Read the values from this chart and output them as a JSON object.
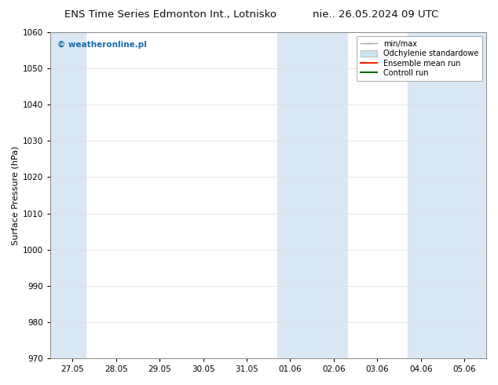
{
  "title_left": "ENS Time Series Edmonton Int., Lotnisko",
  "title_right": "nie.. 26.05.2024 09 UTC",
  "ylabel": "Surface Pressure (hPa)",
  "ylim": [
    970,
    1060
  ],
  "yticks": [
    970,
    980,
    990,
    1000,
    1010,
    1020,
    1030,
    1040,
    1050,
    1060
  ],
  "x_labels": [
    "27.05",
    "28.05",
    "29.05",
    "30.05",
    "31.05",
    "01.06",
    "02.06",
    "03.06",
    "04.06",
    "05.06"
  ],
  "x_values": [
    0,
    1,
    2,
    3,
    4,
    5,
    6,
    7,
    8,
    9
  ],
  "xlim": [
    -0.5,
    9.5
  ],
  "shaded_bands": [
    {
      "x_start": -0.5,
      "x_end": 0.3,
      "color": "#dae8f5"
    },
    {
      "x_start": 4.7,
      "x_end": 6.3,
      "color": "#dae8f5"
    },
    {
      "x_start": 7.7,
      "x_end": 9.5,
      "color": "#dae8f5"
    }
  ],
  "bg_color": "#ffffff",
  "plot_bg_color": "#ffffff",
  "watermark_text": "© weatheronline.pl",
  "watermark_color": "#1a6aaa",
  "title_fontsize": 9.5,
  "tick_fontsize": 7.5,
  "ylabel_fontsize": 8,
  "watermark_fontsize": 7.5,
  "legend_fontsize": 7,
  "grid_color": "#dddddd",
  "spine_color": "#888888",
  "minmax_color": "#aaaaaa",
  "std_face_color": "#cce5f5",
  "std_edge_color": "#aaaaaa",
  "ensemble_color": "#ff2200",
  "control_color": "#006600"
}
